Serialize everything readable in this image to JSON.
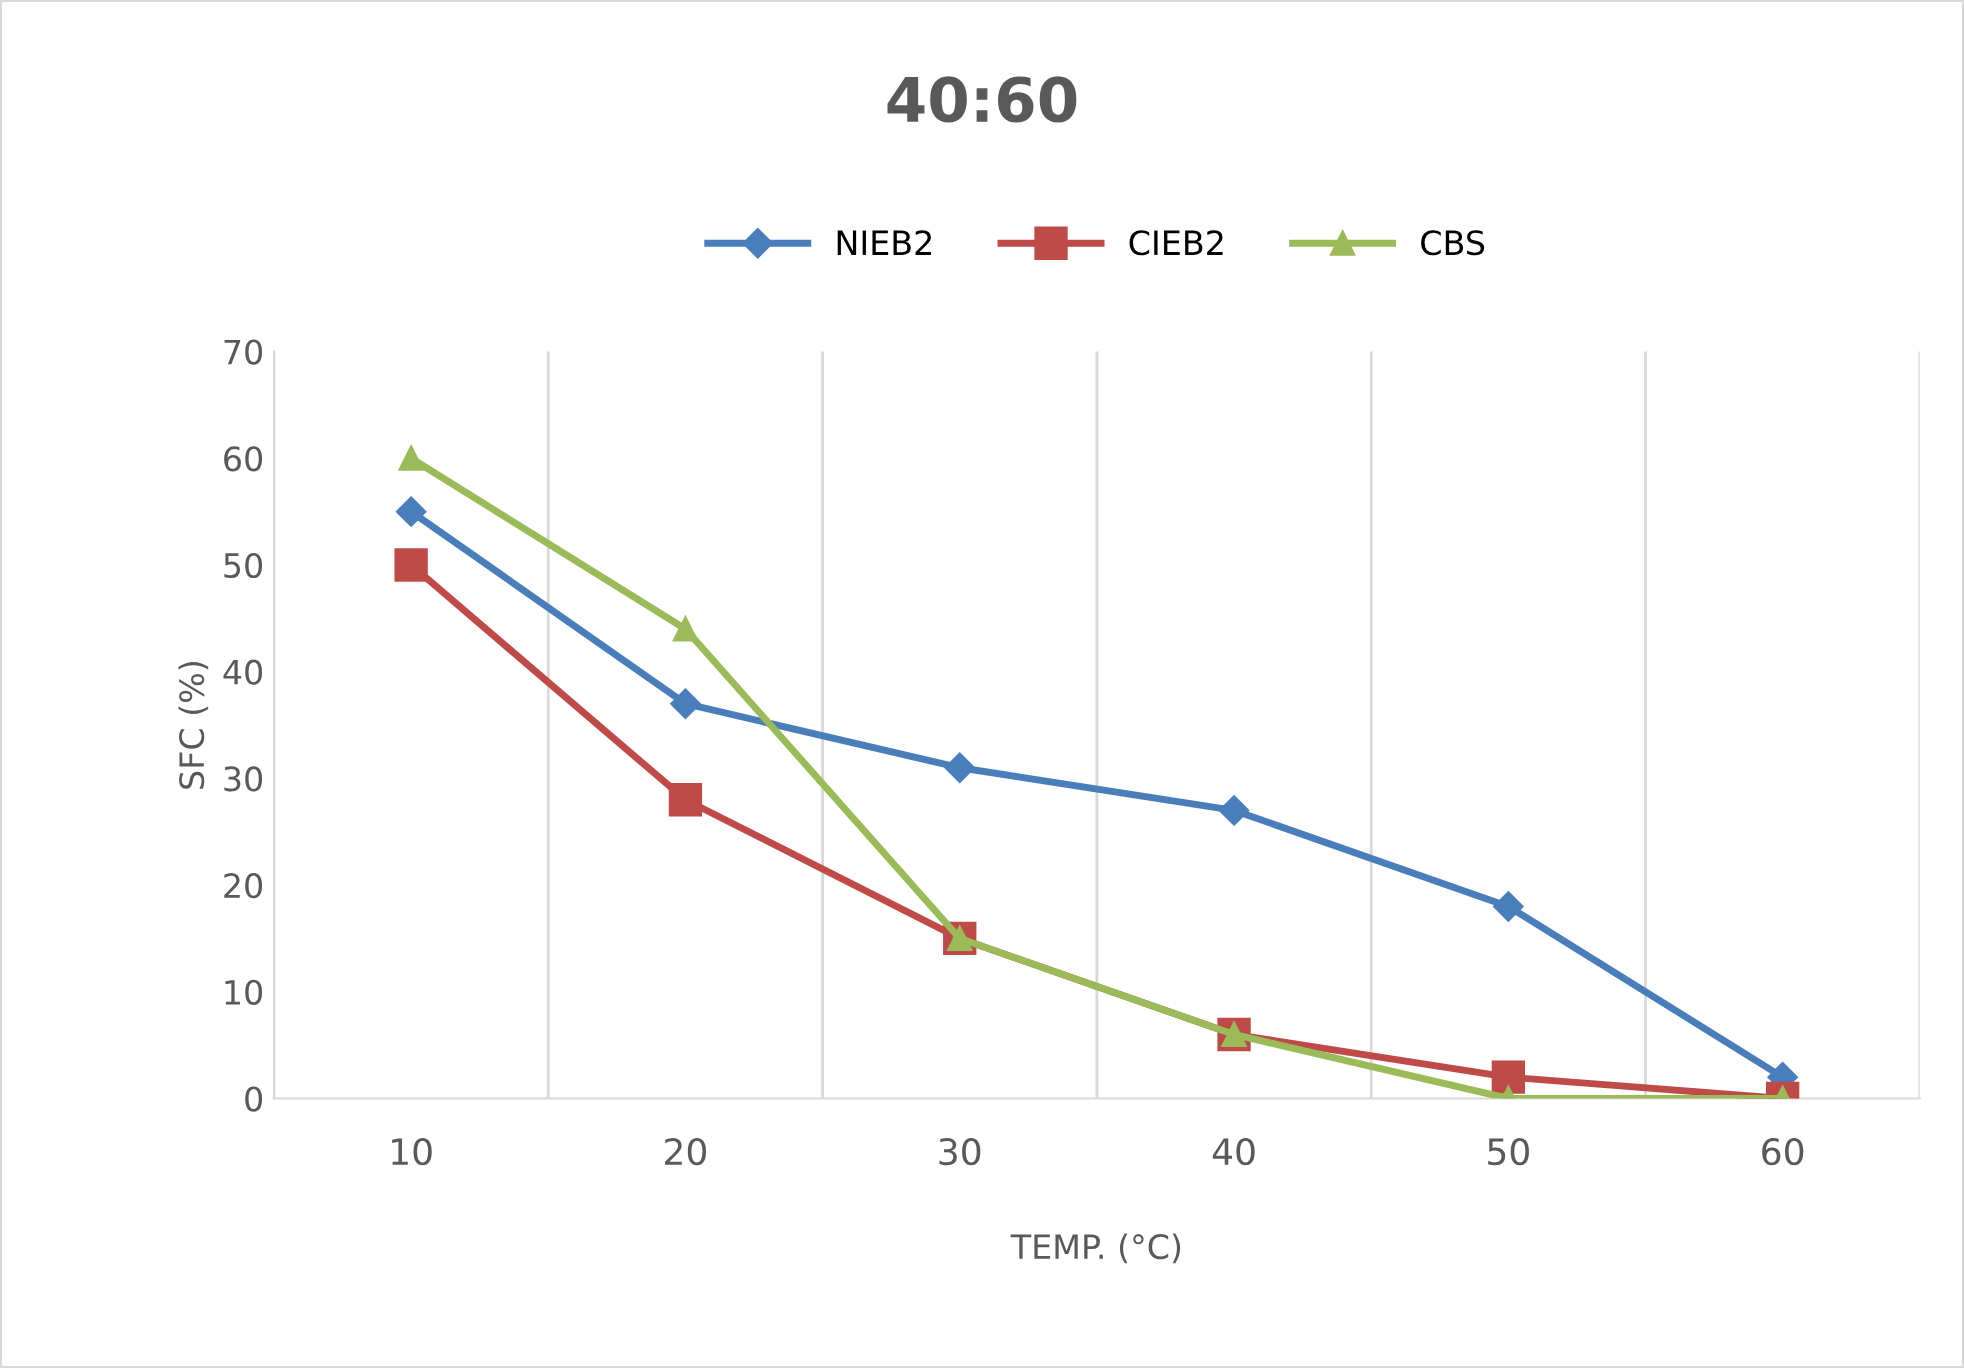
{
  "chart_data": {
    "type": "line",
    "title": "40:60",
    "xlabel": "TEMP. (°C)",
    "ylabel": "SFC (%)",
    "categories": [
      "10",
      "20",
      "30",
      "40",
      "50",
      "60"
    ],
    "series": [
      {
        "name": "NIEB2",
        "color": "#4a7ebb",
        "marker": "diamond",
        "values": [
          55,
          37,
          31,
          27,
          18,
          2
        ]
      },
      {
        "name": "CIEB2",
        "color": "#be4b48",
        "marker": "square",
        "values": [
          50,
          28,
          15,
          6,
          2,
          0
        ]
      },
      {
        "name": "CBS",
        "color": "#9bbb59",
        "marker": "triangle",
        "values": [
          60,
          44,
          15,
          6,
          0,
          0
        ]
      }
    ],
    "ylim": [
      0,
      70
    ],
    "yticks": [
      0,
      10,
      20,
      30,
      40,
      50,
      60,
      70
    ],
    "grid": "x",
    "legend": "top",
    "line_style": "solid"
  }
}
